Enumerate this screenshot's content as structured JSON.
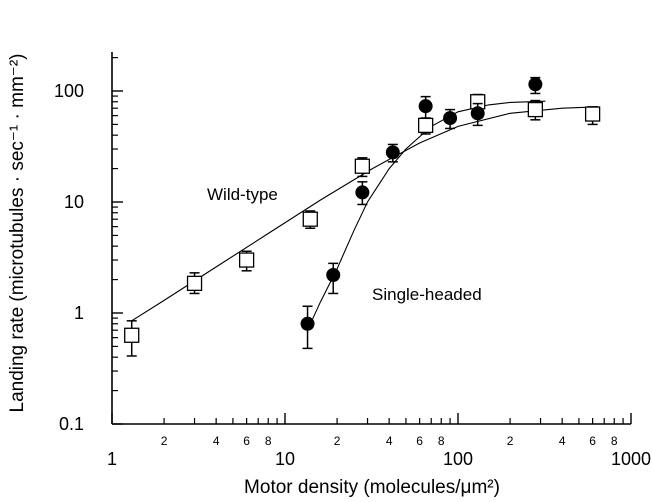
{
  "chart_data": {
    "type": "scatter",
    "x_scale": "log",
    "y_scale": "log",
    "xlim": [
      1,
      1000
    ],
    "ylim": [
      0.1,
      200
    ],
    "xlabel": "Motor density (molecules/μm²)",
    "ylabel": "Landing rate (microtubules · sec⁻¹ · mm⁻²)",
    "x_major_ticks": [
      {
        "v": 1,
        "label": "1"
      },
      {
        "v": 10,
        "label": "10"
      },
      {
        "v": 100,
        "label": "100"
      },
      {
        "v": 1000,
        "label": "1000"
      }
    ],
    "x_minor_tick_labels": [
      {
        "v": 2,
        "label": "2"
      },
      {
        "v": 4,
        "label": "4"
      },
      {
        "v": 6,
        "label": "6"
      },
      {
        "v": 8,
        "label": "8"
      },
      {
        "v": 20,
        "label": "2"
      },
      {
        "v": 40,
        "label": "4"
      },
      {
        "v": 60,
        "label": "6"
      },
      {
        "v": 80,
        "label": "8"
      },
      {
        "v": 200,
        "label": "2"
      },
      {
        "v": 400,
        "label": "4"
      },
      {
        "v": 600,
        "label": "6"
      },
      {
        "v": 800,
        "label": "8"
      }
    ],
    "y_major_ticks": [
      {
        "v": 0.1,
        "label": "0.1"
      },
      {
        "v": 1,
        "label": "1"
      },
      {
        "v": 10,
        "label": "10"
      },
      {
        "v": 100,
        "label": "100"
      }
    ],
    "grid": false,
    "series": [
      {
        "name": "Wild-type",
        "marker": "open-square",
        "points": [
          {
            "x": 1.3,
            "y": 0.63,
            "lo": 0.41,
            "hi": 0.85
          },
          {
            "x": 3.0,
            "y": 1.85,
            "lo": 1.5,
            "hi": 2.3
          },
          {
            "x": 6.0,
            "y": 3.0,
            "lo": 2.4,
            "hi": 3.6
          },
          {
            "x": 14,
            "y": 7.0,
            "lo": 5.8,
            "hi": 8.3
          },
          {
            "x": 28,
            "y": 21,
            "lo": 17,
            "hi": 25
          },
          {
            "x": 65,
            "y": 49,
            "lo": 41,
            "hi": 57
          },
          {
            "x": 130,
            "y": 80,
            "lo": 65,
            "hi": 93
          },
          {
            "x": 280,
            "y": 68,
            "lo": 55,
            "hi": 82
          },
          {
            "x": 600,
            "y": 62,
            "lo": 50,
            "hi": 72
          }
        ],
        "fit": [
          [
            1.3,
            0.85
          ],
          [
            2,
            1.3
          ],
          [
            4,
            2.6
          ],
          [
            8,
            5.2
          ],
          [
            16,
            10.4
          ],
          [
            32,
            20
          ],
          [
            60,
            34
          ],
          [
            100,
            48
          ],
          [
            200,
            63
          ],
          [
            400,
            70
          ],
          [
            650,
            72
          ]
        ]
      },
      {
        "name": "Single-headed",
        "marker": "filled-circle",
        "points": [
          {
            "x": 13.5,
            "y": 0.8,
            "lo": 0.48,
            "hi": 1.15
          },
          {
            "x": 19,
            "y": 2.2,
            "lo": 1.5,
            "hi": 2.8
          },
          {
            "x": 28,
            "y": 12.2,
            "lo": 9.5,
            "hi": 15.2
          },
          {
            "x": 42,
            "y": 28,
            "lo": 23,
            "hi": 33
          },
          {
            "x": 65,
            "y": 73,
            "lo": 57,
            "hi": 89
          },
          {
            "x": 90,
            "y": 57,
            "lo": 46,
            "hi": 68
          },
          {
            "x": 130,
            "y": 63,
            "lo": 49,
            "hi": 77
          },
          {
            "x": 280,
            "y": 115,
            "lo": 95,
            "hi": 132
          }
        ],
        "fit": [
          [
            13.5,
            0.7
          ],
          [
            16,
            1.25
          ],
          [
            20,
            2.5
          ],
          [
            25,
            5.5
          ],
          [
            30,
            10
          ],
          [
            40,
            20
          ],
          [
            50,
            30
          ],
          [
            70,
            48
          ],
          [
            100,
            65
          ],
          [
            150,
            75
          ],
          [
            200,
            79
          ],
          [
            320,
            81
          ]
        ]
      }
    ],
    "annotations": [
      {
        "text": "Wild-type",
        "series": "Wild-type"
      },
      {
        "text": "Single-headed",
        "series": "Single-headed"
      }
    ]
  }
}
